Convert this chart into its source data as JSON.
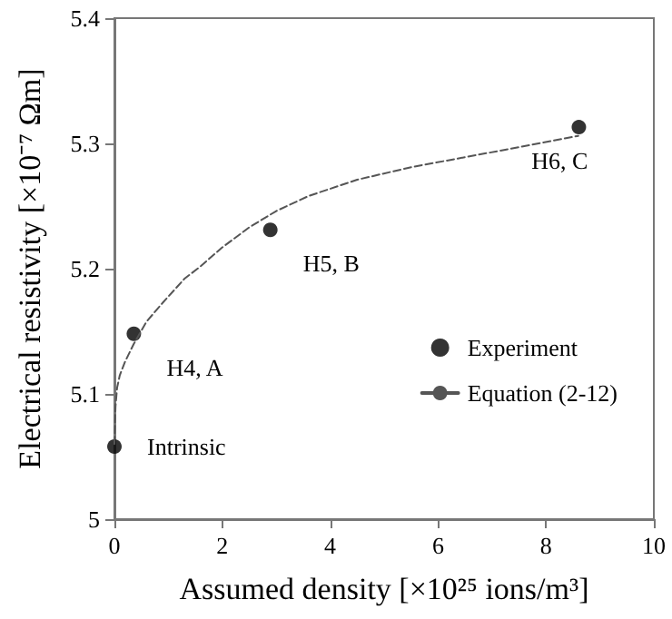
{
  "chart_data": {
    "type": "scatter",
    "xlabel": "Assumed density [×10²⁵ ions/m³]",
    "ylabel": "Electrical resistivity [×10⁻⁷ Ωm]",
    "xlim": [
      0,
      10
    ],
    "xticks": [
      0,
      2,
      4,
      6,
      8,
      10
    ],
    "ylim": [
      5,
      5.4
    ],
    "yticks": [
      5,
      5.1,
      5.2,
      5.3,
      5.4
    ],
    "grid": false,
    "legend": "right",
    "series": [
      {
        "name": "Experiment",
        "color": "#000000",
        "marker": "circle",
        "x": [
          0,
          0.36,
          2.89,
          8.61
        ],
        "values": [
          5.058,
          5.148,
          5.231,
          5.313
        ]
      },
      {
        "name": "Equation (2-12)",
        "type": "line",
        "color": "#555555",
        "marker": "none",
        "line_style": "dashed",
        "x": [
          0,
          0.02,
          0.05,
          0.1,
          0.2,
          0.36,
          0.6,
          0.9,
          1.3,
          1.6,
          2.0,
          2.5,
          3.0,
          3.6,
          4.5,
          5.5,
          6.5,
          7.5,
          8.6
        ],
        "values": [
          5.06,
          5.09,
          5.105,
          5.115,
          5.126,
          5.14,
          5.158,
          5.173,
          5.192,
          5.202,
          5.217,
          5.233,
          5.246,
          5.258,
          5.271,
          5.281,
          5.289,
          5.297,
          5.306
        ]
      }
    ],
    "annotations": [
      {
        "text": "Intrinsic",
        "x": 0,
        "y": 5.058
      },
      {
        "text": "H4, A",
        "x": 0.36,
        "y": 5.148
      },
      {
        "text": "H5, B",
        "x": 2.89,
        "y": 5.231
      },
      {
        "text": "H6, C",
        "x": 8.61,
        "y": 5.313
      }
    ]
  }
}
